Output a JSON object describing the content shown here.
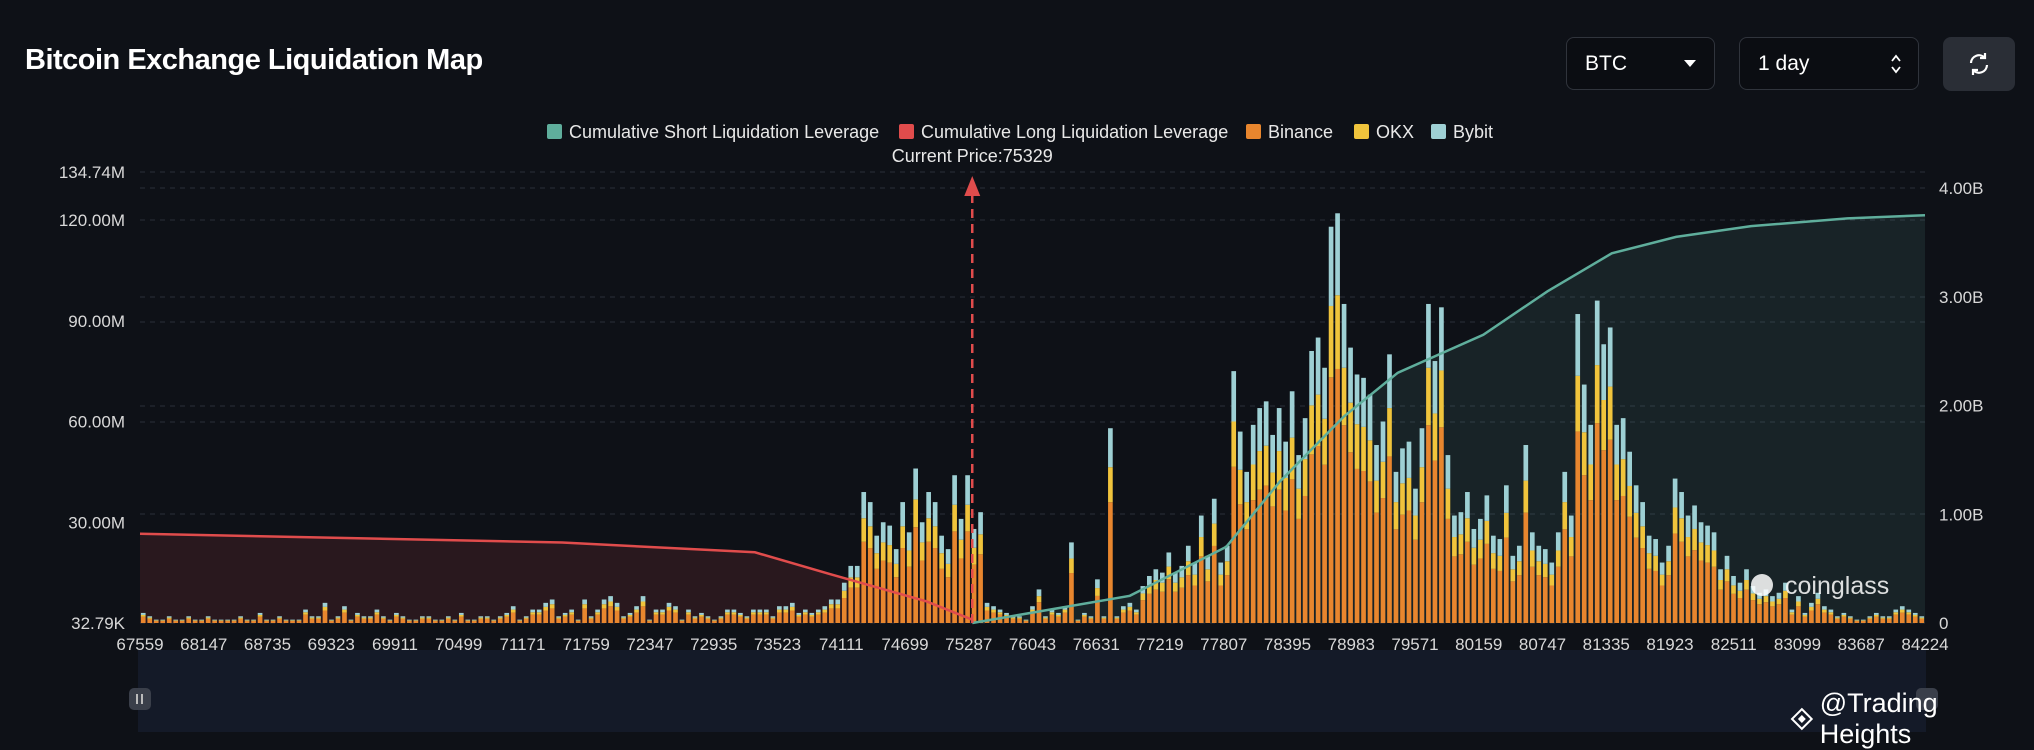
{
  "header": {
    "title": "Bitcoin Exchange Liquidation Map"
  },
  "controls": {
    "coin_select": {
      "value": "BTC"
    },
    "time_select": {
      "value": "1 day"
    },
    "refresh_icon": "refresh-icon"
  },
  "watermarks": {
    "brand": "coinglass",
    "author": "@Trading Heights"
  },
  "colors": {
    "background": "#0e1117",
    "short_line": "#5fae9c",
    "long_line": "#e04c4c",
    "binance": "#e8862e",
    "okx": "#f0c43c",
    "bybit": "#9ed0d4",
    "current_price": "#e04c4c"
  },
  "chart_data": {
    "type": "bar",
    "title": "",
    "current_price_label": "Current Price:75329",
    "current_price": 75329,
    "x_ticks": [
      "67559",
      "68147",
      "68735",
      "69323",
      "69911",
      "70499",
      "71171",
      "71759",
      "72347",
      "72935",
      "73523",
      "74111",
      "74699",
      "75287",
      "76043",
      "76631",
      "77219",
      "77807",
      "78395",
      "78983",
      "79571",
      "80159",
      "80747",
      "81335",
      "81923",
      "82511",
      "83099",
      "83687",
      "84224"
    ],
    "y_left_ticks": [
      "32.79K",
      "30.00M",
      "60.00M",
      "90.00M",
      "120.00M",
      "134.74M"
    ],
    "y_left_values": [
      0,
      30,
      60,
      90,
      120,
      134.74
    ],
    "y_right_ticks": [
      "0",
      "1.00B",
      "2.00B",
      "3.00B",
      "4.00B"
    ],
    "y_right_values": [
      0,
      1,
      2,
      3,
      4
    ],
    "legend": [
      "Cumulative Short Liquidation Leverage",
      "Cumulative Long Liquidation Leverage",
      "Binance",
      "OKX",
      "Bybit"
    ],
    "bar_totals_M": [
      3,
      2,
      1,
      1,
      2,
      1,
      1,
      2,
      1,
      1,
      2,
      1,
      1,
      1,
      1,
      2,
      1,
      1,
      3,
      1,
      1,
      2,
      1,
      1,
      1,
      4,
      2,
      2,
      6,
      1,
      2,
      5,
      1,
      3,
      2,
      2,
      4,
      2,
      1,
      3,
      2,
      1,
      1,
      2,
      2,
      1,
      1,
      2,
      1,
      3,
      1,
      1,
      2,
      2,
      1,
      2,
      3,
      5,
      1,
      2,
      4,
      4,
      6,
      7,
      2,
      3,
      4,
      1,
      7,
      2,
      4,
      7,
      8,
      6,
      2,
      3,
      5,
      8,
      1,
      4,
      4,
      6,
      5,
      1,
      4,
      2,
      3,
      2,
      1,
      2,
      4,
      4,
      3,
      2,
      4,
      4,
      4,
      2,
      5,
      5,
      6,
      3,
      4,
      3,
      4,
      5,
      7,
      7,
      12,
      17,
      17,
      39,
      36,
      26,
      30,
      29,
      22,
      36,
      27,
      46,
      30,
      39,
      36,
      26,
      22,
      44,
      31,
      44,
      28,
      33,
      6,
      5,
      4,
      3,
      2,
      2,
      1,
      5,
      10,
      2,
      4,
      3,
      5,
      24,
      1,
      3,
      2,
      13,
      2,
      58,
      2,
      5,
      6,
      4,
      11,
      14,
      16,
      15,
      21,
      15,
      17,
      23,
      18,
      32,
      20,
      37,
      18,
      23,
      75,
      57,
      45,
      59,
      64,
      66,
      56,
      64,
      54,
      69,
      50,
      61,
      81,
      85,
      76,
      118,
      122,
      95,
      82,
      74,
      73,
      68,
      53,
      60,
      80,
      45,
      52,
      54,
      40,
      58,
      95,
      78,
      94,
      50,
      32,
      33,
      39,
      28,
      31,
      38,
      26,
      25,
      41,
      20,
      23,
      53,
      27,
      23,
      22,
      18,
      27,
      45,
      32,
      92,
      71,
      59,
      96,
      83,
      88,
      59,
      61,
      51,
      41,
      36,
      26,
      25,
      18,
      23,
      43,
      39,
      32,
      35,
      30,
      29,
      27,
      16,
      20,
      14,
      12,
      16,
      11,
      9,
      10,
      8,
      9,
      12,
      4,
      8,
      3,
      6,
      9,
      5,
      4,
      2,
      3,
      2,
      1,
      1,
      2,
      3,
      2,
      2,
      4,
      5,
      4,
      3,
      2
    ],
    "long_cum_B": [
      0.82,
      0.74,
      0.65,
      0.45,
      0.2,
      0.03
    ],
    "long_cum_x": [
      67559,
      71500,
      73300,
      74000,
      74900,
      75329
    ],
    "short_cum_B": [
      0,
      0.25,
      0.7,
      1.3,
      1.9,
      2.3,
      2.65,
      3.05,
      3.4,
      3.55,
      3.65,
      3.72,
      3.75
    ],
    "short_cum_x": [
      75329,
      76800,
      77700,
      78200,
      78800,
      79300,
      80100,
      80700,
      81300,
      81900,
      82600,
      83500,
      84224
    ]
  }
}
